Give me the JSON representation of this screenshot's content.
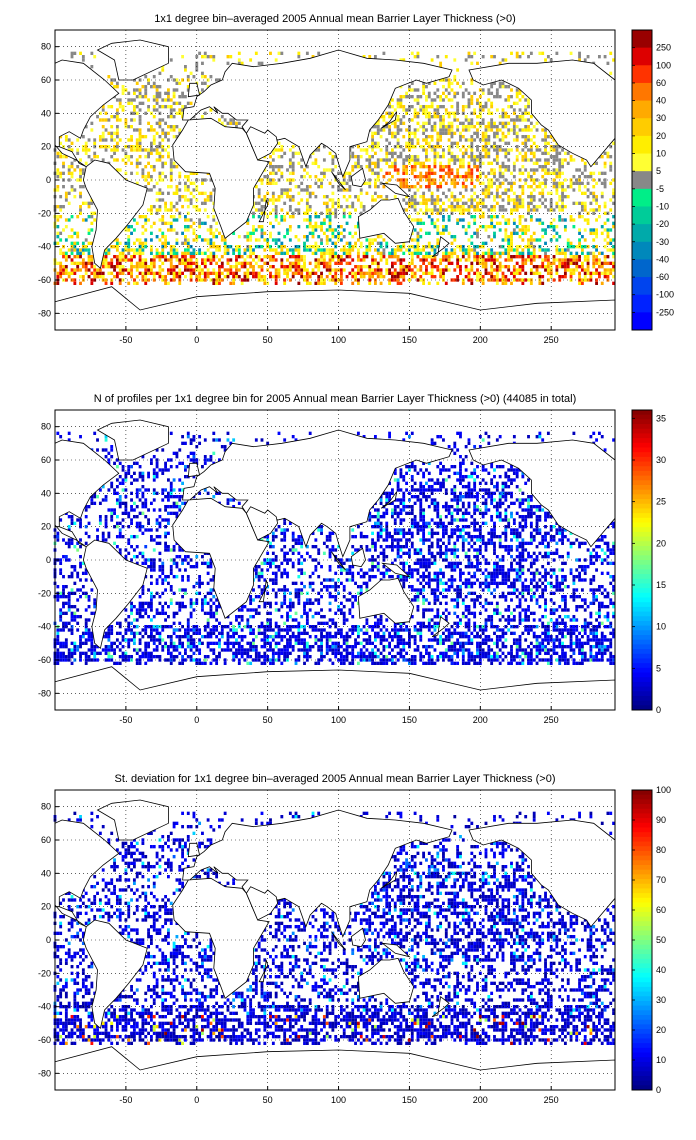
{
  "chart_data": [
    {
      "type": "heatmap",
      "title": "1x1 degree bin–averaged 2005 Annual mean Barrier Layer Thickness (>0)",
      "x_ticks": [
        "-50",
        "0",
        "50",
        "100",
        "150",
        "200",
        "250"
      ],
      "y_ticks": [
        "80",
        "60",
        "40",
        "20",
        "0",
        "-20",
        "-40",
        "-60",
        "-80"
      ],
      "xlim": [
        -100,
        295
      ],
      "ylim": [
        -90,
        90
      ],
      "grid": true,
      "colorbar_labels": [
        "250",
        "100",
        "60",
        "40",
        "30",
        "20",
        "10",
        "5",
        "-5",
        "-10",
        "-20",
        "-30",
        "-40",
        "-60",
        "-100",
        "-250"
      ],
      "colorbar_colors": [
        "#990000",
        "#dd0000",
        "#ff3300",
        "#ff7700",
        "#ffaa00",
        "#ffcc00",
        "#ffee00",
        "#ffff33",
        "#888888",
        "#00ee88",
        "#00cc99",
        "#00aaaa",
        "#0088bb",
        "#0066cc",
        "#0044ee",
        "#0022ff",
        "#0000ff"
      ]
    },
    {
      "type": "heatmap",
      "title": "N of profiles per 1x1 degree bin for 2005 Annual mean Barrier Layer Thickness (>0) (44085 in total)",
      "x_ticks": [
        "-50",
        "0",
        "50",
        "100",
        "150",
        "200",
        "250"
      ],
      "y_ticks": [
        "80",
        "60",
        "40",
        "20",
        "0",
        "-20",
        "-40",
        "-60",
        "-80"
      ],
      "xlim": [
        -100,
        295
      ],
      "ylim": [
        -90,
        90
      ],
      "grid": true,
      "colorbar_range": [
        0,
        36
      ],
      "colorbar_ticks": [
        "35",
        "30",
        "25",
        "20",
        "15",
        "10",
        "5",
        "0"
      ],
      "colormap": "jet"
    },
    {
      "type": "heatmap",
      "title": "St. deviation for 1x1 degree bin–averaged 2005 Annual mean Barrier Layer Thickness (>0)",
      "x_ticks": [
        "-50",
        "0",
        "50",
        "100",
        "150",
        "200",
        "250"
      ],
      "y_ticks": [
        "80",
        "60",
        "40",
        "20",
        "0",
        "-20",
        "-40",
        "-60",
        "-80"
      ],
      "xlim": [
        -100,
        295
      ],
      "ylim": [
        -90,
        90
      ],
      "grid": true,
      "colorbar_range": [
        0,
        100
      ],
      "colorbar_ticks": [
        "100",
        "90",
        "80",
        "70",
        "60",
        "50",
        "40",
        "30",
        "20",
        "10",
        "0"
      ],
      "colormap": "jet"
    }
  ]
}
